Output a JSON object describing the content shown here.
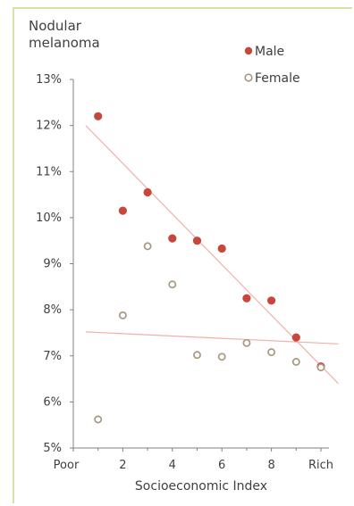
{
  "chart_data": {
    "type": "scatter",
    "ylabel_lines": [
      "Nodular",
      "melanoma"
    ],
    "xlabel": "Socioeconomic Index",
    "ylim": [
      5,
      13
    ],
    "xlim": [
      0,
      10
    ],
    "yticks": [
      "5%",
      "6%",
      "7%",
      "8%",
      "9%",
      "10%",
      "11%",
      "12%",
      "13%"
    ],
    "xticks": [
      {
        "value": 0,
        "label": "Poor"
      },
      {
        "value": 2,
        "label": "2"
      },
      {
        "value": 4,
        "label": "4"
      },
      {
        "value": 6,
        "label": "6"
      },
      {
        "value": 8,
        "label": "8"
      },
      {
        "value": 10,
        "label": "Rich"
      }
    ],
    "legend_position": "top-right",
    "series": [
      {
        "name": "Male",
        "marker": "filled",
        "color": "#c8473a",
        "x": [
          1,
          2,
          3,
          4,
          5,
          6,
          7,
          8,
          9,
          10
        ],
        "y": [
          12.2,
          10.15,
          10.55,
          9.55,
          9.5,
          9.33,
          8.25,
          8.2,
          7.4,
          6.77
        ],
        "trend": {
          "color": "#f0b0a8",
          "points": [
            [
              0.5,
              12.0
            ],
            [
              10.7,
              6.4
            ]
          ]
        }
      },
      {
        "name": "Female",
        "marker": "hollow",
        "color": "#a89880",
        "x": [
          1,
          2,
          3,
          4,
          5,
          6,
          7,
          8,
          9,
          10
        ],
        "y": [
          5.62,
          7.88,
          9.38,
          8.55,
          7.02,
          6.98,
          7.28,
          7.08,
          6.87,
          6.75
        ],
        "trend": {
          "color": "#f0b0a8",
          "points": [
            [
              0.5,
              7.52
            ],
            [
              10.7,
              7.26
            ]
          ]
        }
      }
    ]
  }
}
